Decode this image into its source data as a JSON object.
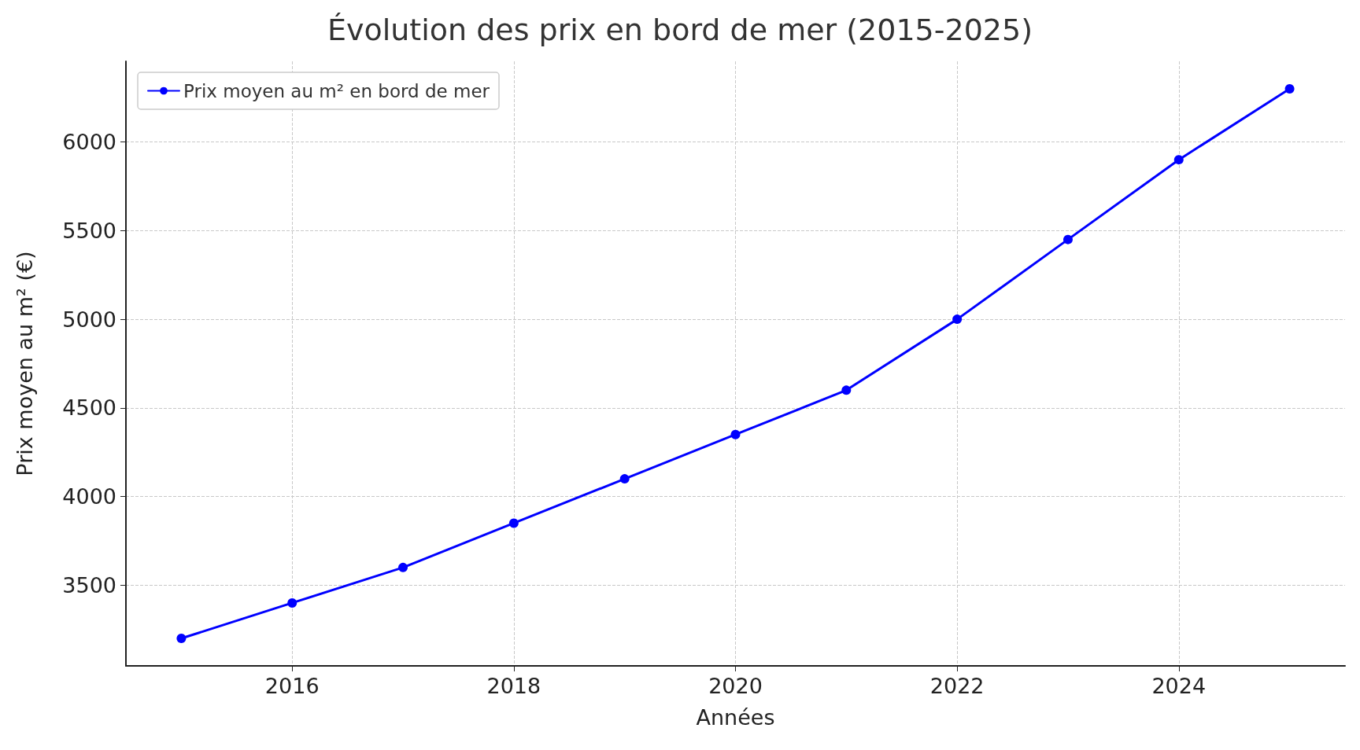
{
  "chart_data": {
    "type": "line",
    "title": "Évolution des prix en bord de mer (2015-2025)",
    "xlabel": "Années",
    "ylabel": "Prix moyen au m² (€)",
    "x": [
      2015,
      2016,
      2017,
      2018,
      2019,
      2020,
      2021,
      2022,
      2023,
      2024,
      2025
    ],
    "series": [
      {
        "name": "Prix moyen au m² en bord de mer",
        "color": "#0000ff",
        "values": [
          3200,
          3400,
          3600,
          3850,
          4100,
          4350,
          4600,
          5000,
          5450,
          5900,
          6300
        ]
      }
    ],
    "xlim": [
      2014.5,
      2025.5
    ],
    "xticks": [
      2016,
      2018,
      2020,
      2022,
      2024
    ],
    "ylim": [
      3045,
      6455
    ],
    "yticks": [
      3500,
      4000,
      4500,
      5000,
      5500,
      6000
    ],
    "grid": true,
    "legend": "top left",
    "marker": "circle",
    "line_style": "solid"
  }
}
